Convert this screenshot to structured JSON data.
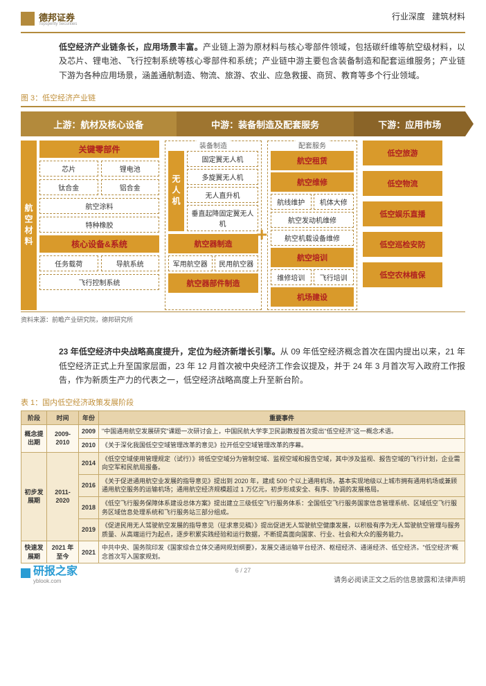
{
  "header": {
    "logo_name": "德邦证券",
    "logo_sub": "Topsperity Securities",
    "doc_type": "行业深度",
    "sector": "建筑材料"
  },
  "para1": {
    "lead": "低空经济产业链条长，应用场景丰富。",
    "body": "产业链上游为原材料与核心零部件领域，包括碳纤维等航空级材料，以及芯片、锂电池、飞行控制系统等核心零部件和系统；产业链中游主要包含装备制造和配套运维服务；产业链下游为各种应用场景，涵盖通航制造、物流、旅游、农业、应急救援、商贸、教育等多个行业领域。"
  },
  "figure": {
    "caption": "图 3：低空经济产业链",
    "source": "资料来源：前瞻产业研究院，德邦研究所",
    "chevrons": [
      "上游：航材及核心设备",
      "中游：装备制造及配套服务",
      "下游：应用市场"
    ],
    "mid_labels": [
      "装备制造",
      "配套服务"
    ],
    "left": {
      "strip": "航空材料",
      "h1": "关键零部件",
      "row1": [
        "芯片",
        "锂电池"
      ],
      "row2": [
        "钛合金",
        "铝合金"
      ],
      "row3": "航空涂料",
      "row4": "特种橡胶",
      "h2": "核心设备&系统",
      "row5": [
        "任务载荷",
        "导航系统"
      ],
      "row6": "飞行控制系统"
    },
    "mid": {
      "strip": "无人机",
      "g1": [
        "固定翼无人机",
        "多旋翼无人机",
        "无人直升机",
        "垂直起降固定翼无人机"
      ],
      "h2": "航空器制造",
      "g2": [
        "军用航空器",
        "民用航空器"
      ],
      "h3": "航空器部件制造"
    },
    "svc": {
      "h": [
        "航空租赁",
        "航空维修"
      ],
      "g1": [
        "航线维护",
        "机体大修"
      ],
      "g2": "航空发动机维修",
      "g3": "航空机载设备维修",
      "h2": "航空培训",
      "g4": [
        "维修培训",
        "飞行培训"
      ],
      "h3": "机场建设"
    },
    "apps": [
      "低空旅游",
      "低空物流",
      "低空娱乐直播",
      "低空巡检安防",
      "低空农林植保"
    ]
  },
  "para2": {
    "lead": "23 年低空经济中央战略高度提升，定位为经济新增长引擎。",
    "body": "从 09 年低空经济概念首次在国内提出以来，21 年低空经济正式上升至国家层面，23 年 12 月首次被中央经济工作会议提及，并于 24 年 3 月首次写入政府工作报告，作为新质生产力的代表之一，低空经济战略高度上升至新台阶。"
  },
  "table": {
    "caption": "表 1：国内低空经济政策发展阶段",
    "headers": [
      "阶段",
      "时间",
      "年份",
      "重要事件"
    ],
    "rows": [
      {
        "stage": "概念提出期",
        "period": "2009-2010",
        "stage_rs": 2,
        "year": "2009",
        "event": "\"中国通用航空发展研究\"课题一次研讨会上，中国民航大学李卫民副教授首次提出\"低空经济\"这一概念术语。"
      },
      {
        "year": "2010",
        "event": "《关于深化我国低空空域管理改革的意见》拉开低空空域管理改革的序幕。"
      },
      {
        "stage": "初步发展期",
        "period": "2011-2020",
        "stage_rs": 4,
        "year": "2014",
        "event": "《低空空域使用管理规定（试行）》将低空空域分为管制空域、监视空域和报告空域，其中涉及监视、报告空域的飞行计划，企业需向空军和民航局报备。",
        "cls": "row-b"
      },
      {
        "year": "2016",
        "event": "《关于促进通用航空业发展的指导意见》提出到 2020 年，建成 500 个以上通用机场，基本实现地级以上城市拥有通用机场或兼顾通用航空服务的运输机场；通用航空经济规模超过 1 万亿元，初步形成安全、有序、协调的发展格局。",
        "cls": "row-b"
      },
      {
        "year": "2018",
        "event": "《低空飞行服务保障体系建设总体方案》提出建立三级低空飞行服务体系：全国低空飞行服务国家信息管理系统、区域低空飞行服务区域信息处理系统和飞行服务站三部分组成。",
        "cls": "row-b"
      },
      {
        "year": "2019",
        "event": "《促进民用无人驾驶航空发展的指导意见（征求意见稿）》提出促进无人驾驶航空健康发展，以积极有序为无人驾驶航空管理与服务质量、从高端运行为起点，逐步积累实践经验和运行数据，不断提高面向国家、行业、社会和大众的服务能力。",
        "cls": "row-b"
      },
      {
        "stage": "快速发展期",
        "period": "2021 年至今",
        "stage_rs": 1,
        "year": "2021",
        "event": "中共中央、国务院印发《国家综合立体交通网规划纲要》，发展交通运输平台经济、枢纽经济、通道经济、低空经济。\"低空经济\"概念首次写入国家规划。"
      }
    ]
  },
  "footer": {
    "pagenum": "6 / 27",
    "disclaimer": "请务必阅读正文之后的信息披露和法律声明",
    "brand": "研报之家",
    "brand_url": "yblook.com"
  }
}
